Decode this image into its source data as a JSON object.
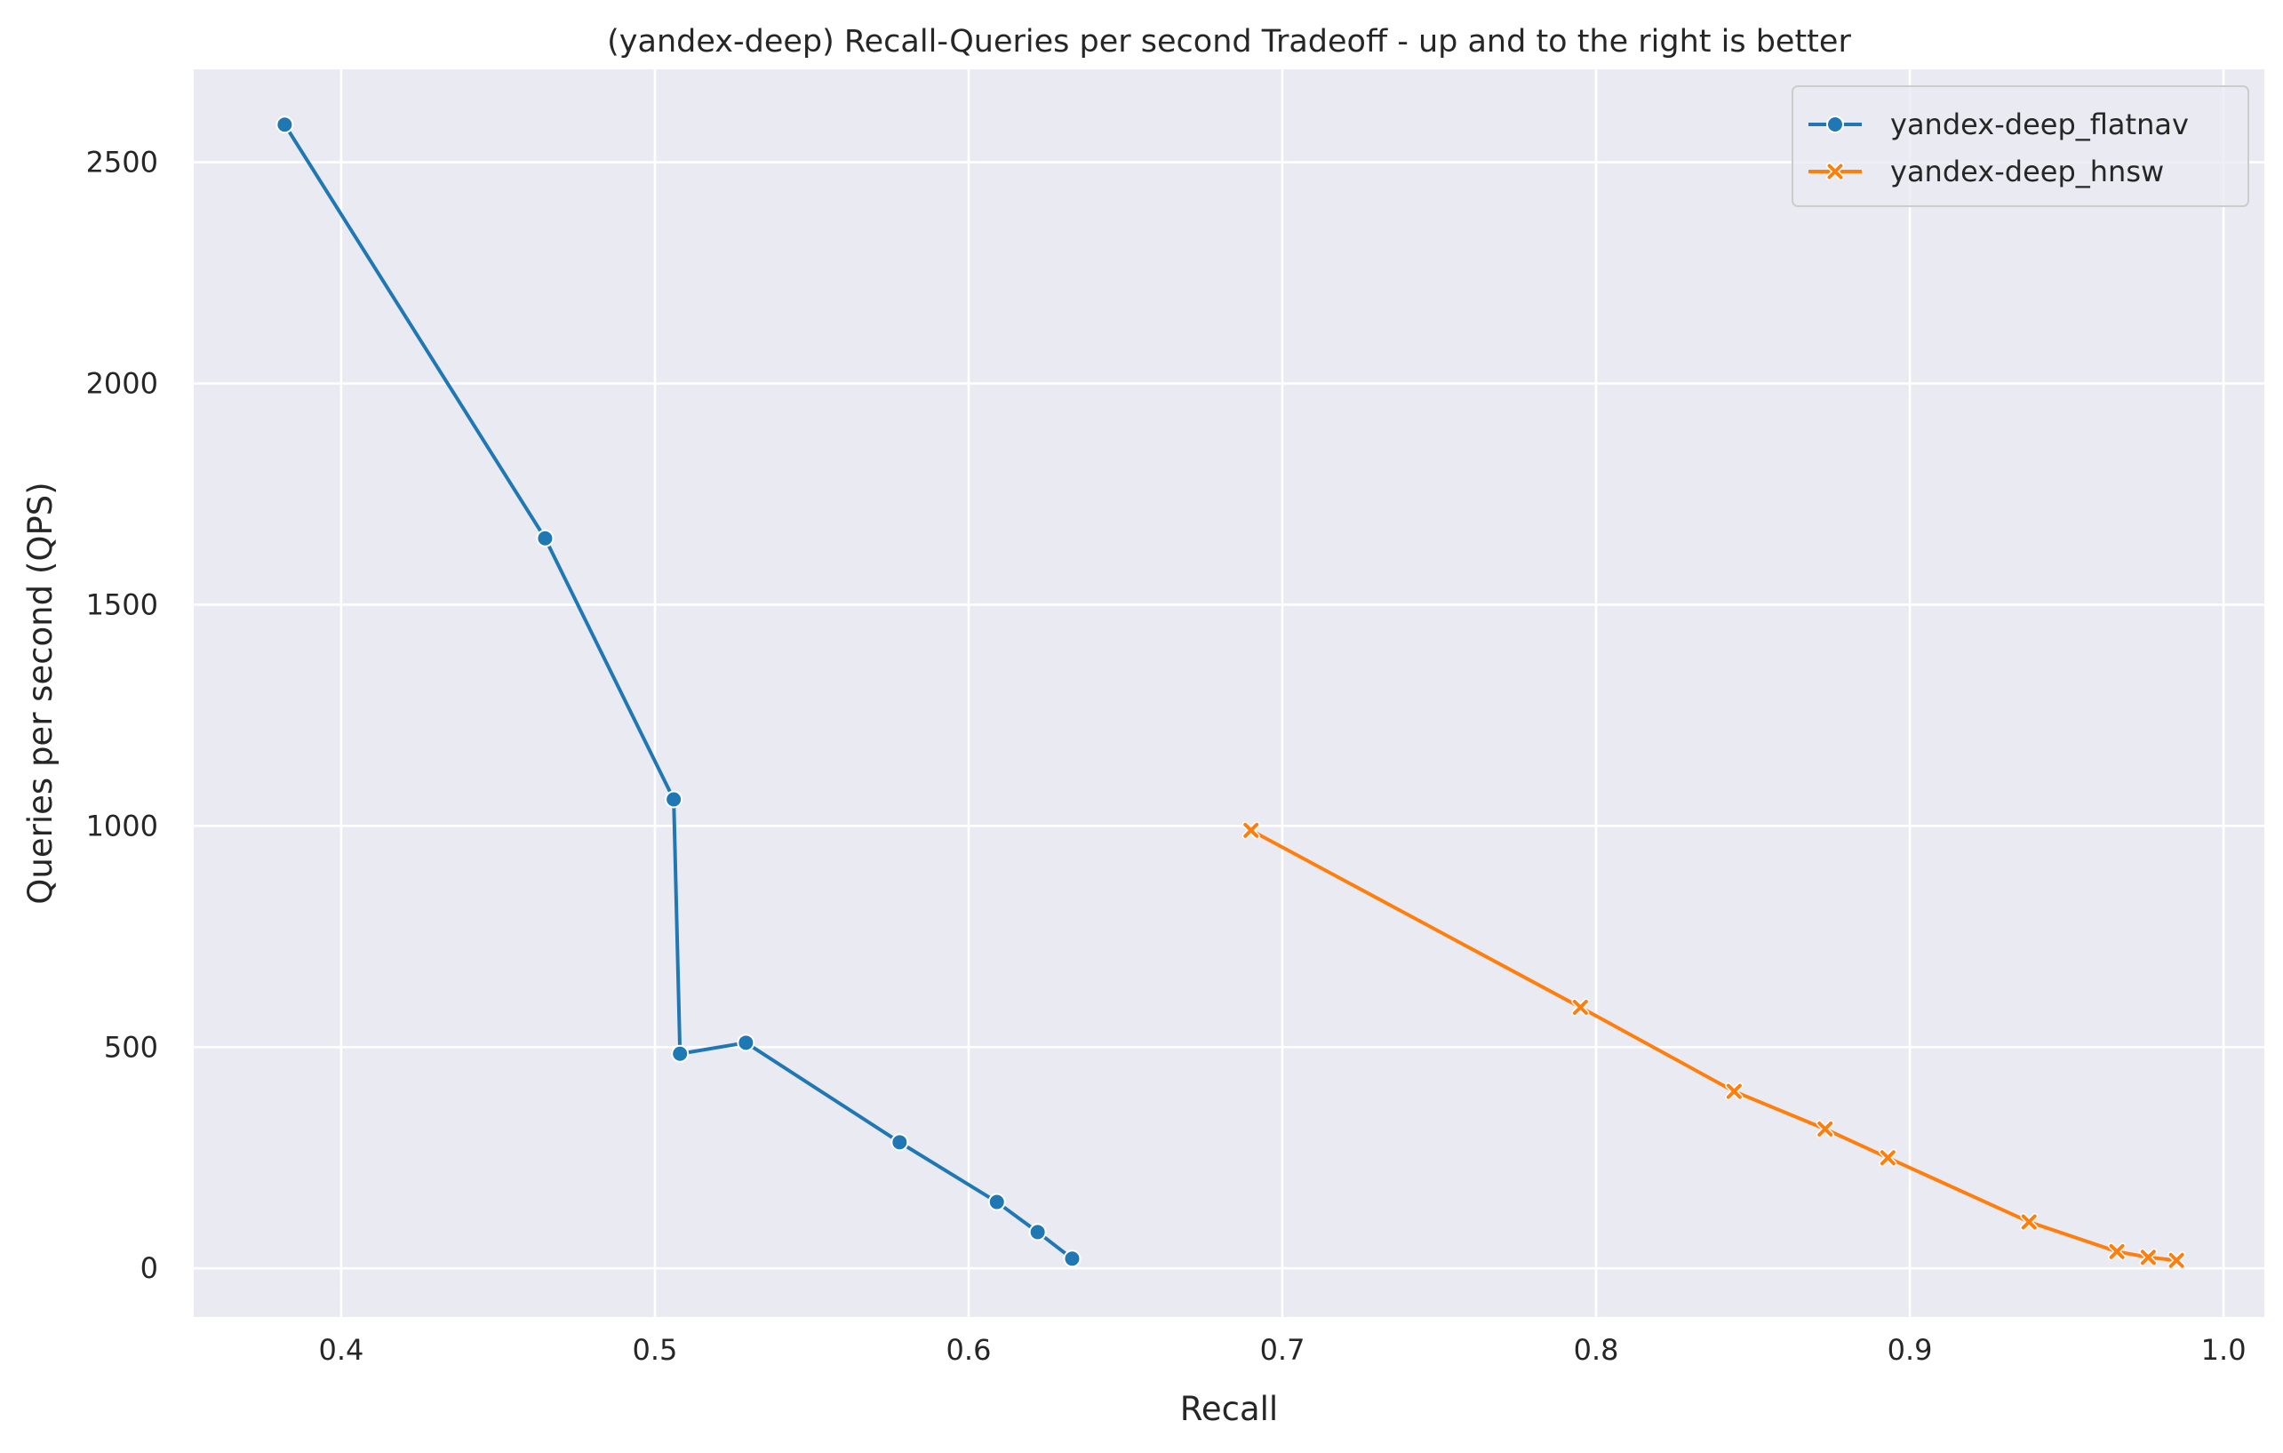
{
  "chart_data": {
    "type": "line",
    "title": "(yandex-deep) Recall-Queries per second Tradeoff - up and to the right is better",
    "xlabel": "Recall",
    "ylabel": "Queries per second (QPS)",
    "xlim": [
      0.353,
      1.013
    ],
    "ylim": [
      -110,
      2710
    ],
    "x_ticks": [
      0.4,
      0.5,
      0.6,
      0.7,
      0.8,
      0.9,
      1.0
    ],
    "x_tick_labels": [
      "0.4",
      "0.5",
      "0.6",
      "0.7",
      "0.8",
      "0.9",
      "1.0"
    ],
    "y_ticks": [
      0,
      500,
      1000,
      1500,
      2000,
      2500
    ],
    "y_tick_labels": [
      "0",
      "500",
      "1000",
      "1500",
      "2000",
      "2500"
    ],
    "grid": true,
    "background_color": "#eaeaf2",
    "legend_position": "top-right",
    "series": [
      {
        "name": "yandex-deep_flatnav",
        "color": "#1f77b4",
        "marker": "circle",
        "x": [
          0.382,
          0.465,
          0.506,
          0.508,
          0.529,
          0.578,
          0.609,
          0.622,
          0.633
        ],
        "y": [
          2585,
          1650,
          1060,
          485,
          510,
          285,
          150,
          82,
          22
        ]
      },
      {
        "name": "yandex-deep_hnsw",
        "color": "#ff7f0e",
        "marker": "x",
        "x": [
          0.69,
          0.795,
          0.844,
          0.873,
          0.893,
          0.938,
          0.966,
          0.976,
          0.985
        ],
        "y": [
          990,
          590,
          400,
          315,
          250,
          105,
          38,
          25,
          18
        ]
      }
    ]
  }
}
